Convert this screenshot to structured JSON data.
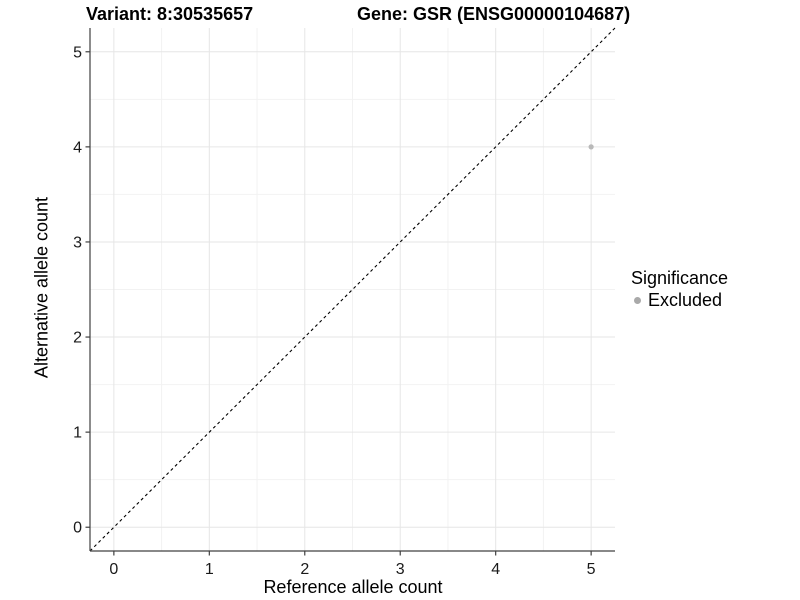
{
  "header": {
    "variant_title": "Variant: 8:30535657",
    "gene_title": "Gene: GSR (ENSG00000104687)"
  },
  "legend": {
    "title": "Significance",
    "items": [
      {
        "label": "Excluded",
        "color": "#a9a9a9"
      }
    ]
  },
  "chart_data": {
    "type": "scatter",
    "title_left": "Variant: 8:30535657",
    "title_right": "Gene: GSR (ENSG00000104687)",
    "xlabel": "Reference allele count",
    "ylabel": "Alternative allele count",
    "xlim": [
      -0.25,
      5.25
    ],
    "ylim": [
      -0.25,
      5.25
    ],
    "x_ticks": [
      0,
      1,
      2,
      3,
      4,
      5
    ],
    "y_ticks": [
      0,
      1,
      2,
      3,
      4,
      5
    ],
    "x_minor": [
      0.5,
      1.5,
      2.5,
      3.5,
      4.5
    ],
    "y_minor": [
      0.5,
      1.5,
      2.5,
      3.5,
      4.5
    ],
    "grid": true,
    "legend_position": "right",
    "series": [
      {
        "name": "Excluded",
        "color": "#b9b9b9",
        "marker_radius": 2.6,
        "points": [
          [
            5,
            4
          ]
        ]
      }
    ],
    "reference_line": {
      "kind": "identity",
      "style": "dashed",
      "color": "#000000",
      "from": [
        -0.25,
        -0.25
      ],
      "to": [
        5.25,
        5.25
      ]
    },
    "style": {
      "background": "#ffffff",
      "axis_color": "#404040",
      "grid_major_color": "#e6e6e6",
      "grid_minor_color": "#f2f2f2",
      "tick_label_color": "#1a1a1a"
    }
  }
}
